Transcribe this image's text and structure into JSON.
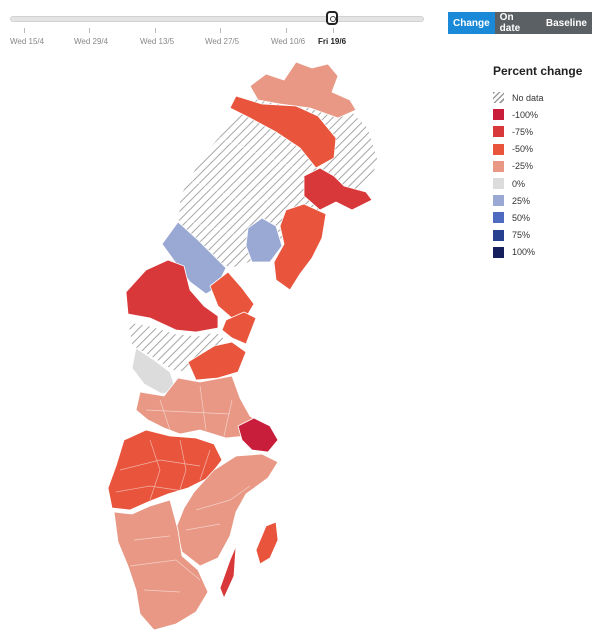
{
  "timeline": {
    "ticks": [
      {
        "label": "Wed 15/4",
        "active": false
      },
      {
        "label": "Wed 29/4",
        "active": false
      },
      {
        "label": "Wed 13/5",
        "active": false
      },
      {
        "label": "Wed 27/5",
        "active": false
      },
      {
        "label": "Wed 10/6",
        "active": false
      },
      {
        "label": "Fri 19/6",
        "active": true
      }
    ]
  },
  "toggle": {
    "options": [
      {
        "label": "Change",
        "active": true
      },
      {
        "label": "On date",
        "active": false
      },
      {
        "label": "Baseline",
        "active": false
      }
    ]
  },
  "legend": {
    "title": "Percent change",
    "items": [
      {
        "label": "No data",
        "color": "hatch"
      },
      {
        "label": "-100%",
        "color": "#c81e3b"
      },
      {
        "label": "-75%",
        "color": "#d9383a"
      },
      {
        "label": "-50%",
        "color": "#e8553c"
      },
      {
        "label": "-25%",
        "color": "#e89884"
      },
      {
        "label": "0%",
        "color": "#dcdcdc"
      },
      {
        "label": "25%",
        "color": "#9aa8d4"
      },
      {
        "label": "50%",
        "color": "#4f6bc1"
      },
      {
        "label": "75%",
        "color": "#27408f"
      },
      {
        "label": "100%",
        "color": "#141f5c"
      }
    ]
  },
  "map": {
    "regions": [
      {
        "name": "no-data-north",
        "category": "No data"
      },
      {
        "name": "northern-tip",
        "category": "-25%"
      },
      {
        "name": "north-east-coast",
        "category": "-50%"
      },
      {
        "name": "norrbotten-coast",
        "category": "-75%"
      },
      {
        "name": "vasterbotten-west",
        "category": "25%"
      },
      {
        "name": "vasterbotten-inland",
        "category": "25%"
      },
      {
        "name": "vasterbotten-coast",
        "category": "-50%"
      },
      {
        "name": "jamtland-west",
        "category": "-75%"
      },
      {
        "name": "jamtland-east",
        "category": "-50%"
      },
      {
        "name": "vasternorrland",
        "category": "-50%"
      },
      {
        "name": "no-data-central",
        "category": "No data"
      },
      {
        "name": "dalarna-west",
        "category": "0%"
      },
      {
        "name": "gavleborg",
        "category": "-50%"
      },
      {
        "name": "svealand",
        "category": "-25%"
      },
      {
        "name": "stockholm",
        "category": "-100%"
      },
      {
        "name": "vastra-gotaland",
        "category": "-50%"
      },
      {
        "name": "smaland",
        "category": "-25%"
      },
      {
        "name": "skane",
        "category": "-25%"
      },
      {
        "name": "oland",
        "category": "-75%"
      },
      {
        "name": "gotland",
        "category": "-50%"
      }
    ]
  }
}
